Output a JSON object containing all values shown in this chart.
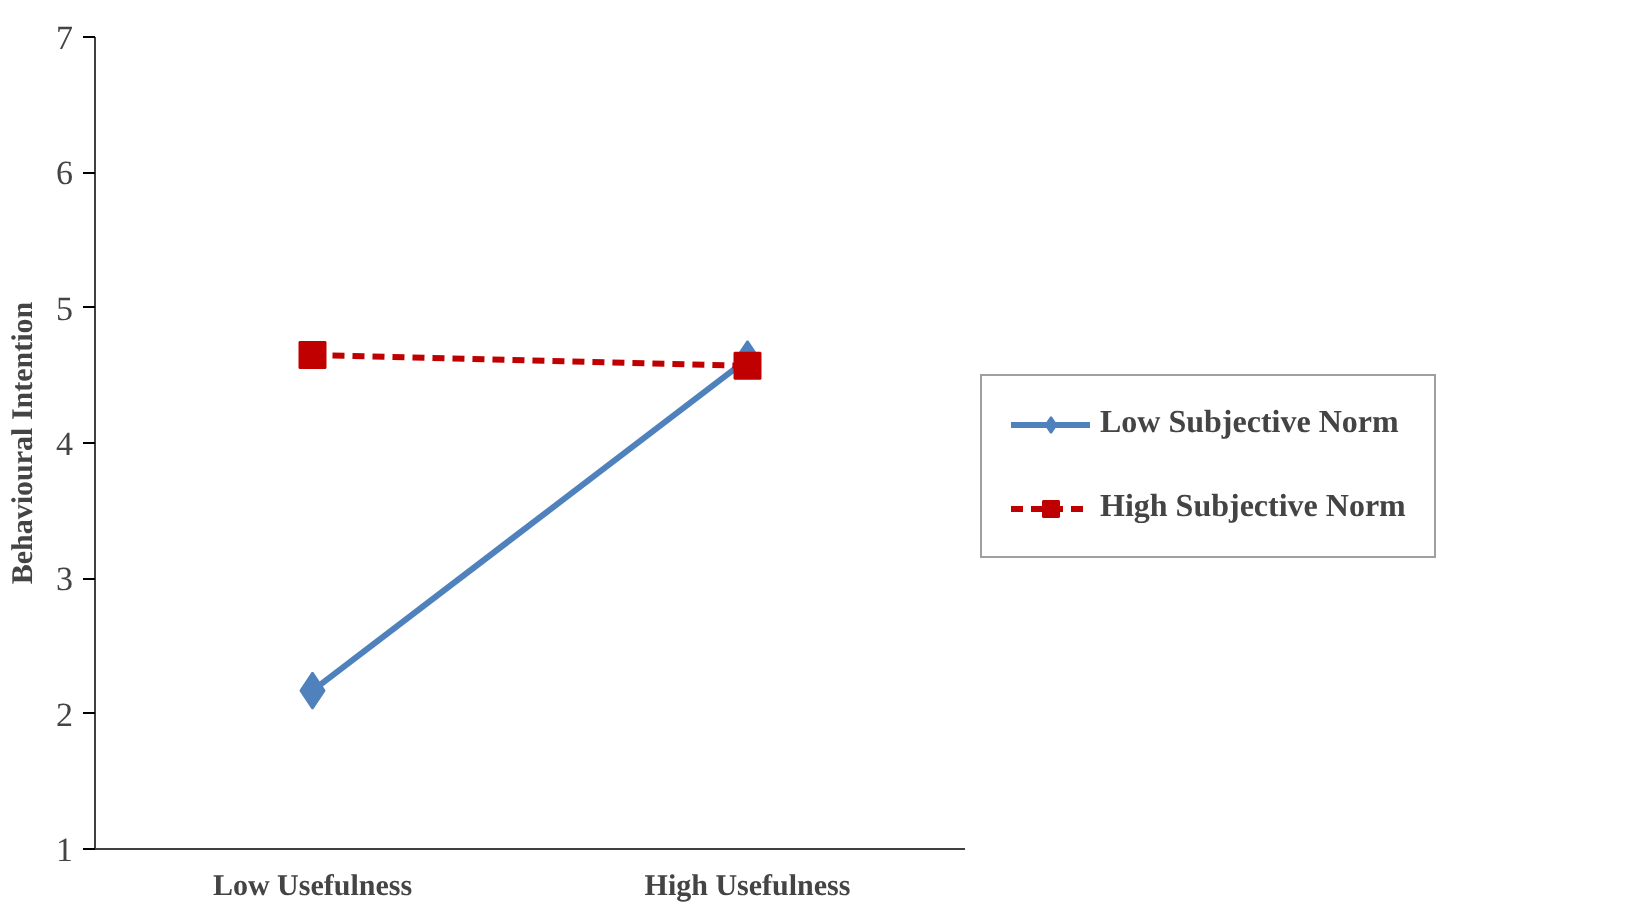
{
  "chart_data": {
    "type": "line",
    "ylabel": "Behavioural Intention",
    "categories": [
      "Low Usefulness",
      "High Usefulness"
    ],
    "series": [
      {
        "name": "Low Subjective Norm",
        "color": "#4f81bd",
        "values": [
          2.17,
          4.62
        ],
        "marker": "diamond",
        "line_style": "solid"
      },
      {
        "name": "High Subjective Norm",
        "color": "#c00000",
        "values": [
          4.65,
          4.57
        ],
        "marker": "square",
        "line_style": "dashed"
      }
    ],
    "ylim": [
      1,
      7
    ],
    "yticks": [
      1,
      2,
      3,
      4,
      5,
      6,
      7
    ],
    "grid": false,
    "legend": "right"
  }
}
